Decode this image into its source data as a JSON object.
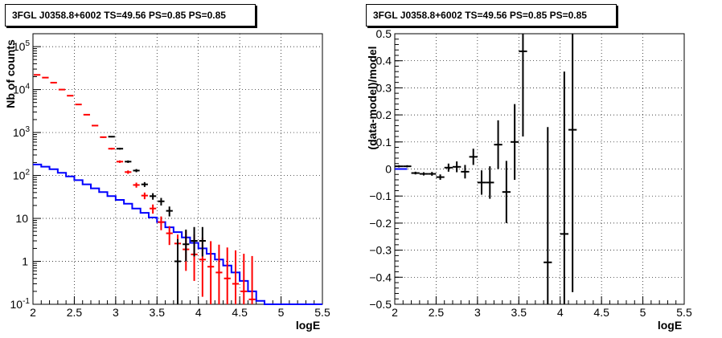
{
  "panels": [
    {
      "title": "3FGL J0358.8+6002 TS=49.56 PS=0.85 PS=0.85"
    },
    {
      "title": "3FGL J0358.8+6002 TS=49.56 PS=0.85 PS=0.85"
    }
  ],
  "chart_data": [
    {
      "type": "line",
      "title": "3FGL J0358.8+6002 TS=49.56 PS=0.85 PS=0.85",
      "xlabel": "logE",
      "ylabel": "Nb of counts",
      "xlim": [
        2,
        5.5
      ],
      "ylim": [
        0.1,
        200000
      ],
      "yscale": "log",
      "grid": true,
      "x_ticks": [
        "2",
        "2.5",
        "3",
        "3.5",
        "4",
        "4.5",
        "5",
        "5.5"
      ],
      "y_ticks": [
        "10^-1",
        "1",
        "10",
        "10^2",
        "10^3",
        "10^4",
        "10^5"
      ],
      "series": [
        {
          "style": "step",
          "color": "#0000ff",
          "bin_width": 0.1,
          "x": [
            2.05,
            2.15,
            2.25,
            2.35,
            2.45,
            2.55,
            2.65,
            2.75,
            2.85,
            2.95,
            3.05,
            3.15,
            3.25,
            3.35,
            3.45,
            3.55,
            3.65,
            3.75,
            3.85,
            3.95,
            4.05,
            4.15,
            4.25,
            4.35,
            4.45,
            4.55,
            4.65,
            4.75,
            4.85,
            4.95,
            5.05,
            5.15,
            5.25,
            5.35,
            5.45
          ],
          "y": [
            180,
            160,
            140,
            115,
            95,
            78,
            62,
            50,
            41,
            33,
            27,
            22,
            17,
            13.5,
            10.5,
            8.2,
            6.2,
            4.8,
            3.6,
            2.7,
            2.0,
            1.5,
            1.1,
            0.8,
            0.55,
            0.35,
            0.2,
            0.12,
            0.1,
            0.1,
            0.1,
            0.1,
            0.1,
            0.1,
            0.1
          ]
        },
        {
          "style": "errorbar",
          "color": "#ff0000",
          "x": [
            2.05,
            2.15,
            2.25,
            2.35,
            2.45,
            2.55,
            2.65,
            2.75,
            2.85,
            2.95,
            3.05,
            3.15,
            3.25,
            3.35,
            3.45,
            3.55,
            3.65,
            3.75,
            3.85,
            3.95,
            4.05,
            4.15,
            4.25,
            4.35,
            4.45,
            4.55,
            4.65
          ],
          "y": [
            22000,
            19000,
            14500,
            10000,
            7200,
            4500,
            2600,
            1450,
            780,
            420,
            210,
            120,
            60,
            34,
            17,
            8.2,
            4.5,
            2.6,
            1.9,
            1.45,
            1.1,
            0.75,
            0.55,
            0.4,
            0.3,
            0.2,
            0.13
          ],
          "yerr_low": [
            0,
            0,
            0,
            0,
            0,
            0,
            0,
            0,
            30,
            20,
            14,
            11,
            8,
            6,
            4.1,
            2.9,
            2.1,
            1.6,
            1.3,
            1.1,
            0.95,
            0.65,
            0.5,
            0.37,
            0.28,
            0.19,
            0.12
          ],
          "yerr_high": [
            0,
            0,
            0,
            0,
            0,
            0,
            0,
            0,
            30,
            20,
            14,
            11,
            8,
            6,
            4.1,
            2.9,
            2.1,
            1.6,
            3.2,
            2.8,
            2.5,
            2.2,
            1.9,
            1.7,
            1.5,
            1.3,
            1.2
          ]
        },
        {
          "style": "errorbar",
          "color": "#000000",
          "x": [
            2.95,
            3.05,
            3.15,
            3.25,
            3.35,
            3.45,
            3.55,
            3.65,
            3.75,
            3.85,
            3.95,
            4.05
          ],
          "y": [
            800,
            420,
            210,
            130,
            62,
            33,
            25,
            15,
            1,
            2.5,
            3,
            3
          ],
          "yerr_low": [
            28,
            20,
            14,
            11,
            8,
            5.7,
            5,
            3.9,
            0.9,
            1.5,
            1.7,
            1.7
          ],
          "yerr_high": [
            28,
            20,
            14,
            11,
            8,
            5.7,
            5,
            3.9,
            2.3,
            3,
            3.3,
            3.3
          ]
        }
      ]
    },
    {
      "type": "scatter",
      "title": "3FGL J0358.8+6002 TS=49.56 PS=0.85 PS=0.85",
      "xlabel": "logE",
      "ylabel": "(data-model)/model",
      "xlim": [
        2,
        5.5
      ],
      "ylim": [
        -0.5,
        0.5
      ],
      "grid": true,
      "x_ticks": [
        "2",
        "2.5",
        "3",
        "3.5",
        "4",
        "4.5",
        "5",
        "5.5"
      ],
      "y_ticks": [
        "−0.5",
        "−0.4",
        "−0.3",
        "−0.2",
        "−0.1",
        "0",
        "0.1",
        "0.2",
        "0.3",
        "0.4",
        "0.5"
      ],
      "series": [
        {
          "style": "step",
          "color": "#0000ff",
          "x": [
            2.0,
            2.15
          ],
          "y": [
            0,
            0
          ]
        },
        {
          "style": "errorbar",
          "color": "#000000",
          "x": [
            2.05,
            2.15,
            2.25,
            2.35,
            2.45,
            2.55,
            2.65,
            2.75,
            2.85,
            2.95,
            3.05,
            3.15,
            3.25,
            3.35,
            3.45,
            3.55,
            3.85,
            4.05,
            4.15
          ],
          "y": [
            0.01,
            0.01,
            -0.015,
            -0.018,
            -0.018,
            -0.03,
            0.005,
            0.008,
            -0.01,
            0.045,
            -0.05,
            -0.05,
            0.09,
            -0.085,
            0.1,
            0.435,
            -0.345,
            -0.24,
            0.145
          ],
          "yerr": [
            0.004,
            0.004,
            0.005,
            0.006,
            0.007,
            0.01,
            0.015,
            0.02,
            0.025,
            0.03,
            0.045,
            0.06,
            0.09,
            0.115,
            0.14,
            0.315,
            0.5,
            0.6,
            0.6
          ],
          "xerr": [
            0.05,
            0.05,
            0.05,
            0.05,
            0.05,
            0.05,
            0.05,
            0.05,
            0.05,
            0.05,
            0.05,
            0.05,
            0.05,
            0.05,
            0.05,
            0.05,
            0.05,
            0.05,
            0.05
          ]
        }
      ]
    }
  ]
}
